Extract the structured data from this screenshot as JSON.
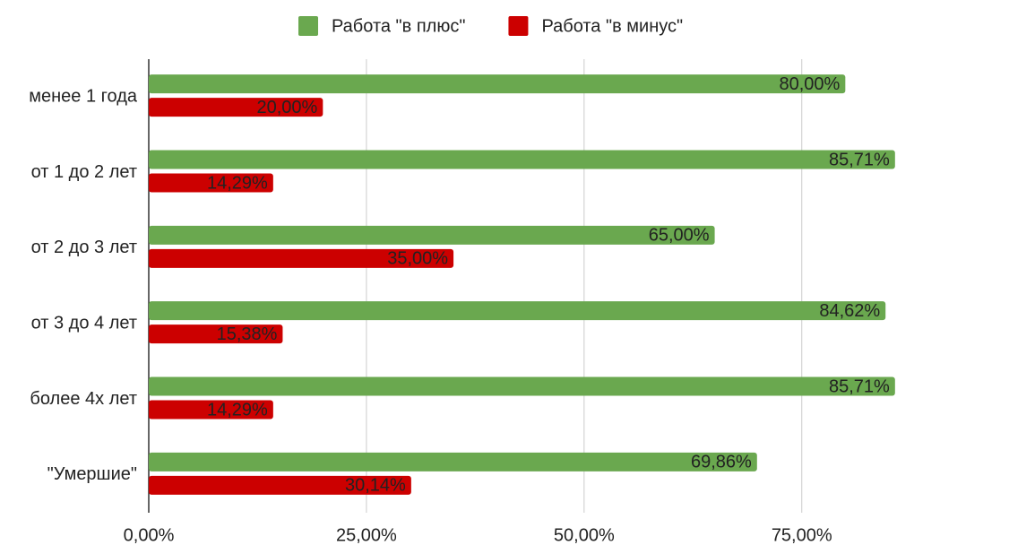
{
  "chart_data": {
    "type": "bar",
    "orientation": "horizontal",
    "categories": [
      "менее 1 года",
      "от 1 до 2 лет",
      "от 2 до 3 лет",
      "от 3 до 4 лет",
      "более 4х лет",
      "\"Умершие\""
    ],
    "series": [
      {
        "name": "Работа \"в плюс\"",
        "color": "#6aa84f",
        "values": [
          80,
          85.71,
          65,
          84.62,
          85.71,
          69.86
        ],
        "value_labels": [
          "80,00%",
          "85,71%",
          "65,00%",
          "84,62%",
          "85,71%",
          "69,86%"
        ]
      },
      {
        "name": "Работа \"в минус\"",
        "color": "#cc0000",
        "values": [
          20,
          14.29,
          35,
          15.38,
          14.29,
          30.14
        ],
        "value_labels": [
          "20,00%",
          "14,29%",
          "35,00%",
          "15,38%",
          "14,29%",
          "30,14%"
        ]
      }
    ],
    "xlim": [
      0,
      98.8
    ],
    "xticks": [
      {
        "value": 0,
        "label": "0,00%"
      },
      {
        "value": 25,
        "label": "25,00%"
      },
      {
        "value": 50,
        "label": "50,00%"
      },
      {
        "value": 75,
        "label": "75,00%"
      }
    ],
    "grid": true,
    "legend": "top"
  }
}
